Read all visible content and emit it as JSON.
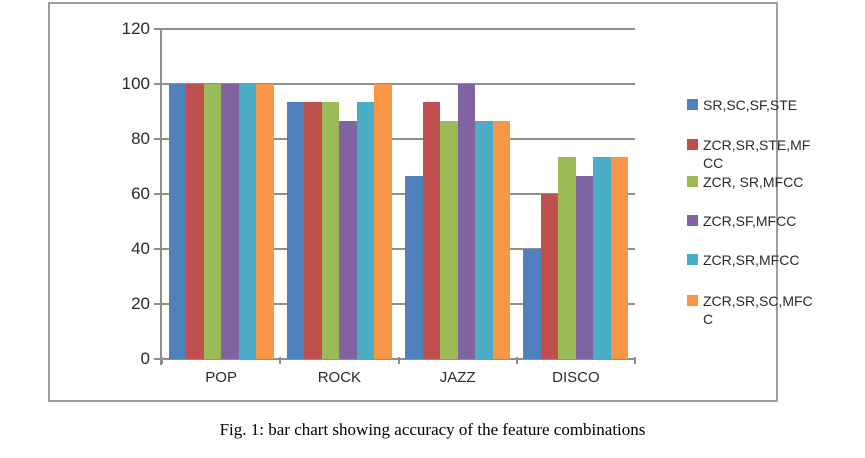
{
  "figure": {
    "caption": "Fig. 1: bar chart showing accuracy of the feature combinations"
  },
  "axis_colors": {
    "grid": "#8f8f8f",
    "frame": "#9e9e9e",
    "text": "#2a2a2a"
  },
  "chart_data": {
    "type": "bar",
    "title": "",
    "xlabel": "",
    "ylabel": "",
    "categories": [
      "POP",
      "ROCK",
      "JAZZ",
      "DISCO"
    ],
    "series": [
      {
        "name": "SR,SC,SF,STE",
        "label_lines": [
          "SR,SC,SF,STE"
        ],
        "color": "#4F81BD",
        "values": [
          100,
          93.3,
          66.7,
          40
        ]
      },
      {
        "name": "ZCR,SR,STE,MFCC",
        "label_lines": [
          "ZCR,SR,STE,MF",
          "CC"
        ],
        "color": "#C0504D",
        "values": [
          100,
          93.3,
          93.3,
          60
        ]
      },
      {
        "name": "ZCR, SR,MFCC",
        "label_lines": [
          "ZCR, SR,MFCC"
        ],
        "color": "#9BBB59",
        "values": [
          100,
          93.3,
          86.7,
          73.3
        ]
      },
      {
        "name": "ZCR,SF,MFCC",
        "label_lines": [
          "ZCR,SF,MFCC"
        ],
        "color": "#8064A2",
        "values": [
          100,
          86.7,
          100,
          66.7
        ]
      },
      {
        "name": "ZCR,SR,MFCC",
        "label_lines": [
          "ZCR,SR,MFCC"
        ],
        "color": "#4BACC6",
        "values": [
          100,
          93.3,
          86.7,
          73.3
        ]
      },
      {
        "name": "ZCR,SR,SC,MFCC",
        "label_lines": [
          "ZCR,SR,SC,MFC",
          "C"
        ],
        "color": "#F79646",
        "values": [
          100,
          100,
          86.7,
          73.3
        ]
      }
    ],
    "ylim": [
      0,
      120
    ],
    "yticks": [
      0,
      20,
      40,
      60,
      80,
      100,
      120
    ],
    "grid": true,
    "legend_position": "right"
  }
}
